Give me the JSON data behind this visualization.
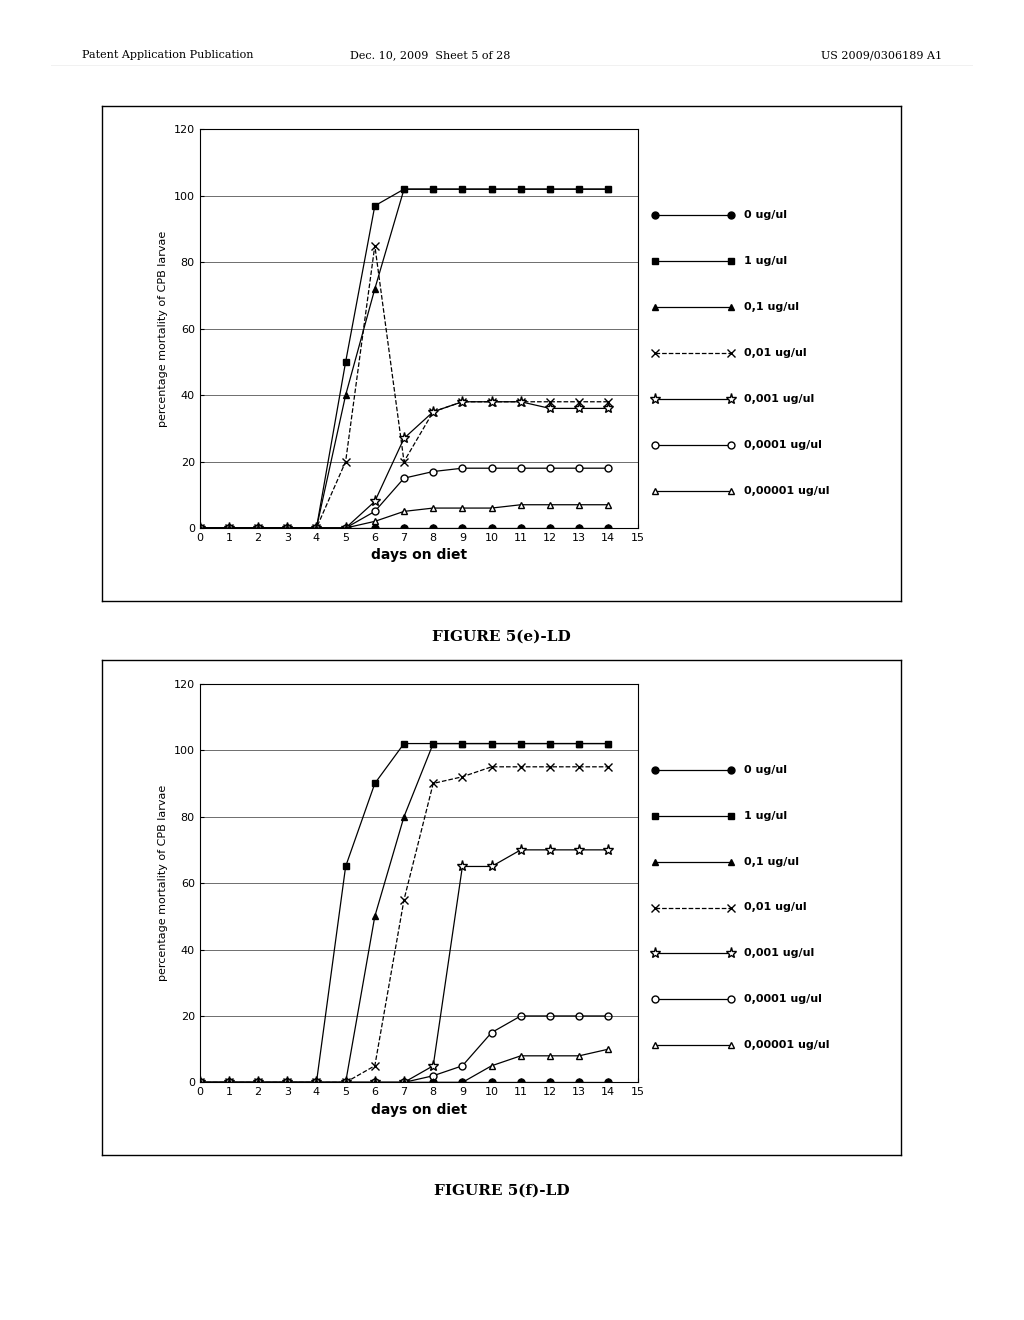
{
  "fig_width": 10.24,
  "fig_height": 13.2,
  "bg_color": "#ffffff",
  "chart_bg": "#ffffff",
  "header_left": "Patent Application Publication",
  "header_mid": "Dec. 10, 2009  Sheet 5 of 28",
  "header_right": "US 2009/0306189 A1",
  "chart_e": {
    "title": "FIGURE 5(e)-LD",
    "xlabel": "days on diet",
    "ylabel": "percentage mortality of CPB larvae",
    "xlim": [
      0,
      15
    ],
    "ylim": [
      0,
      120
    ],
    "xticks": [
      0,
      1,
      2,
      3,
      4,
      5,
      6,
      7,
      8,
      9,
      10,
      11,
      12,
      13,
      14,
      15
    ],
    "yticks": [
      0,
      20,
      40,
      60,
      80,
      100,
      120
    ],
    "series": [
      {
        "label": "0 ug/ul",
        "x": [
          0,
          1,
          2,
          3,
          4,
          5,
          6,
          7,
          8,
          9,
          10,
          11,
          12,
          13,
          14
        ],
        "y": [
          0,
          0,
          0,
          0,
          0,
          0,
          0,
          0,
          0,
          0,
          0,
          0,
          0,
          0,
          0
        ],
        "marker": "o",
        "linestyle": "-",
        "filled": true
      },
      {
        "label": "1 ug/ul",
        "x": [
          0,
          1,
          2,
          3,
          4,
          5,
          6,
          7,
          8,
          9,
          10,
          11,
          12,
          13,
          14
        ],
        "y": [
          0,
          0,
          0,
          0,
          0,
          50,
          97,
          102,
          102,
          102,
          102,
          102,
          102,
          102,
          102
        ],
        "marker": "s",
        "linestyle": "-",
        "filled": true
      },
      {
        "label": "0,1 ug/ul",
        "x": [
          0,
          1,
          2,
          3,
          4,
          5,
          6,
          7,
          8,
          9,
          10,
          11,
          12,
          13,
          14
        ],
        "y": [
          0,
          0,
          0,
          0,
          0,
          40,
          72,
          102,
          102,
          102,
          102,
          102,
          102,
          102,
          102
        ],
        "marker": "^",
        "linestyle": "-",
        "filled": true
      },
      {
        "label": "0,01 ug/ul",
        "x": [
          0,
          1,
          2,
          3,
          4,
          5,
          6,
          7,
          8,
          9,
          10,
          11,
          12,
          13,
          14
        ],
        "y": [
          0,
          0,
          0,
          0,
          0,
          20,
          85,
          20,
          35,
          38,
          38,
          38,
          38,
          38,
          38
        ],
        "marker": "x",
        "linestyle": "--",
        "filled": false
      },
      {
        "label": "0,001 ug/ul",
        "x": [
          0,
          1,
          2,
          3,
          4,
          5,
          6,
          7,
          8,
          9,
          10,
          11,
          12,
          13,
          14
        ],
        "y": [
          0,
          0,
          0,
          0,
          0,
          0,
          8,
          27,
          35,
          38,
          38,
          38,
          36,
          36,
          36
        ],
        "marker": "*",
        "linestyle": "-",
        "filled": false
      },
      {
        "label": "0,0001 ug/ul",
        "x": [
          0,
          1,
          2,
          3,
          4,
          5,
          6,
          7,
          8,
          9,
          10,
          11,
          12,
          13,
          14
        ],
        "y": [
          0,
          0,
          0,
          0,
          0,
          0,
          5,
          15,
          17,
          18,
          18,
          18,
          18,
          18,
          18
        ],
        "marker": "o",
        "linestyle": "-",
        "filled": false
      },
      {
        "label": "0,00001 ug/ul",
        "x": [
          0,
          1,
          2,
          3,
          4,
          5,
          6,
          7,
          8,
          9,
          10,
          11,
          12,
          13,
          14
        ],
        "y": [
          0,
          0,
          0,
          0,
          0,
          0,
          2,
          5,
          6,
          6,
          6,
          7,
          7,
          7,
          7
        ],
        "marker": "^",
        "linestyle": "-",
        "filled": false
      }
    ]
  },
  "chart_f": {
    "title": "FIGURE 5(f)-LD",
    "xlabel": "days on diet",
    "ylabel": "percentage mortality of CPB larvae",
    "xlim": [
      0,
      15
    ],
    "ylim": [
      0,
      120
    ],
    "xticks": [
      0,
      1,
      2,
      3,
      4,
      5,
      6,
      7,
      8,
      9,
      10,
      11,
      12,
      13,
      14,
      15
    ],
    "yticks": [
      0,
      20,
      40,
      60,
      80,
      100,
      120
    ],
    "series": [
      {
        "label": "0 ug/ul",
        "x": [
          0,
          1,
          2,
          3,
          4,
          5,
          6,
          7,
          8,
          9,
          10,
          11,
          12,
          13,
          14
        ],
        "y": [
          0,
          0,
          0,
          0,
          0,
          0,
          0,
          0,
          0,
          0,
          0,
          0,
          0,
          0,
          0
        ],
        "marker": "o",
        "linestyle": "-",
        "filled": true
      },
      {
        "label": "1 ug/ul",
        "x": [
          0,
          1,
          2,
          3,
          4,
          5,
          6,
          7,
          8,
          9,
          10,
          11,
          12,
          13,
          14
        ],
        "y": [
          0,
          0,
          0,
          0,
          0,
          65,
          90,
          102,
          102,
          102,
          102,
          102,
          102,
          102,
          102
        ],
        "marker": "s",
        "linestyle": "-",
        "filled": true
      },
      {
        "label": "0,1 ug/ul",
        "x": [
          0,
          1,
          2,
          3,
          4,
          5,
          6,
          7,
          8,
          9,
          10,
          11,
          12,
          13,
          14
        ],
        "y": [
          0,
          0,
          0,
          0,
          0,
          0,
          50,
          80,
          102,
          102,
          102,
          102,
          102,
          102,
          102
        ],
        "marker": "^",
        "linestyle": "-",
        "filled": true
      },
      {
        "label": "0,01 ug/ul",
        "x": [
          0,
          1,
          2,
          3,
          4,
          5,
          6,
          7,
          8,
          9,
          10,
          11,
          12,
          13,
          14
        ],
        "y": [
          0,
          0,
          0,
          0,
          0,
          0,
          5,
          55,
          90,
          92,
          95,
          95,
          95,
          95,
          95
        ],
        "marker": "x",
        "linestyle": "--",
        "filled": false
      },
      {
        "label": "0,001 ug/ul",
        "x": [
          0,
          1,
          2,
          3,
          4,
          5,
          6,
          7,
          8,
          9,
          10,
          11,
          12,
          13,
          14
        ],
        "y": [
          0,
          0,
          0,
          0,
          0,
          0,
          0,
          0,
          5,
          65,
          65,
          70,
          70,
          70,
          70
        ],
        "marker": "*",
        "linestyle": "-",
        "filled": false
      },
      {
        "label": "0,0001 ug/ul",
        "x": [
          0,
          1,
          2,
          3,
          4,
          5,
          6,
          7,
          8,
          9,
          10,
          11,
          12,
          13,
          14
        ],
        "y": [
          0,
          0,
          0,
          0,
          0,
          0,
          0,
          0,
          2,
          5,
          15,
          20,
          20,
          20,
          20
        ],
        "marker": "o",
        "linestyle": "-",
        "filled": false
      },
      {
        "label": "0,00001 ug/ul",
        "x": [
          0,
          1,
          2,
          3,
          4,
          5,
          6,
          7,
          8,
          9,
          10,
          11,
          12,
          13,
          14
        ],
        "y": [
          0,
          0,
          0,
          0,
          0,
          0,
          0,
          0,
          0,
          0,
          5,
          8,
          8,
          8,
          10
        ],
        "marker": "^",
        "linestyle": "-",
        "filled": false
      }
    ]
  },
  "legend_labels_e": [
    "0 ug/ul",
    "1 ug/ul",
    "0,1 ug/ul",
    "0,01 ug/ul",
    "0,001 ug/ul",
    "0,0001 ug/ul",
    "0,00001 ug/ul"
  ],
  "legend_labels_f": [
    "0 ug/ul",
    "1 ug/ul",
    "0,1 ug/ul",
    "0,01 ug/ul",
    "0,001 ug/ul",
    "0,0001 ug/ul",
    "0,00001 ug/ul"
  ]
}
